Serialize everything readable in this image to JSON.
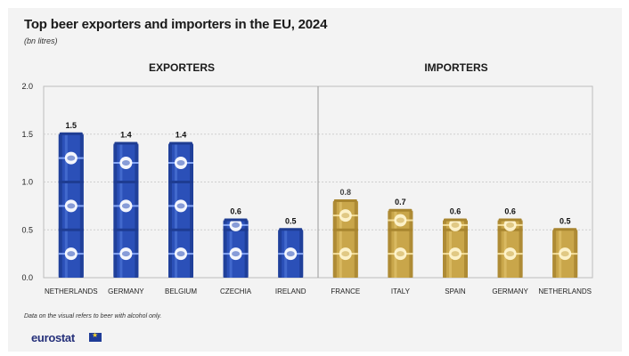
{
  "title": "Top beer exporters and importers in the EU, 2024",
  "subtitle": "(bn litres)",
  "footnote": "Data on the visual refers to beer with alcohol only.",
  "logo": "eurostat",
  "colors": {
    "exporters": "#2b50b8",
    "importers": "#c9a64a",
    "background": "#f3f3f3"
  },
  "chart_data": {
    "type": "bar",
    "ylim": [
      0,
      2.0
    ],
    "yticks": [
      "0.0",
      "0.5",
      "1.0",
      "1.5",
      "2.0"
    ],
    "grid": true,
    "groups": [
      {
        "label": "EXPORTERS",
        "categories": [
          "NETHERLANDS",
          "GERMANY",
          "BELGIUM",
          "CZECHIA",
          "IRELAND"
        ],
        "values": [
          1.5,
          1.4,
          1.4,
          0.6,
          0.5
        ],
        "value_labels": [
          "1.5",
          "1.4",
          "1.4",
          "0.6",
          "0.5"
        ]
      },
      {
        "label": "IMPORTERS",
        "categories": [
          "FRANCE",
          "ITALY",
          "SPAIN",
          "GERMANY",
          "NETHERLANDS"
        ],
        "values": [
          0.8,
          0.7,
          0.6,
          0.6,
          0.5
        ],
        "value_labels": [
          "0.8",
          "0.7",
          "0.6",
          "0.6",
          "0.5"
        ]
      }
    ]
  }
}
